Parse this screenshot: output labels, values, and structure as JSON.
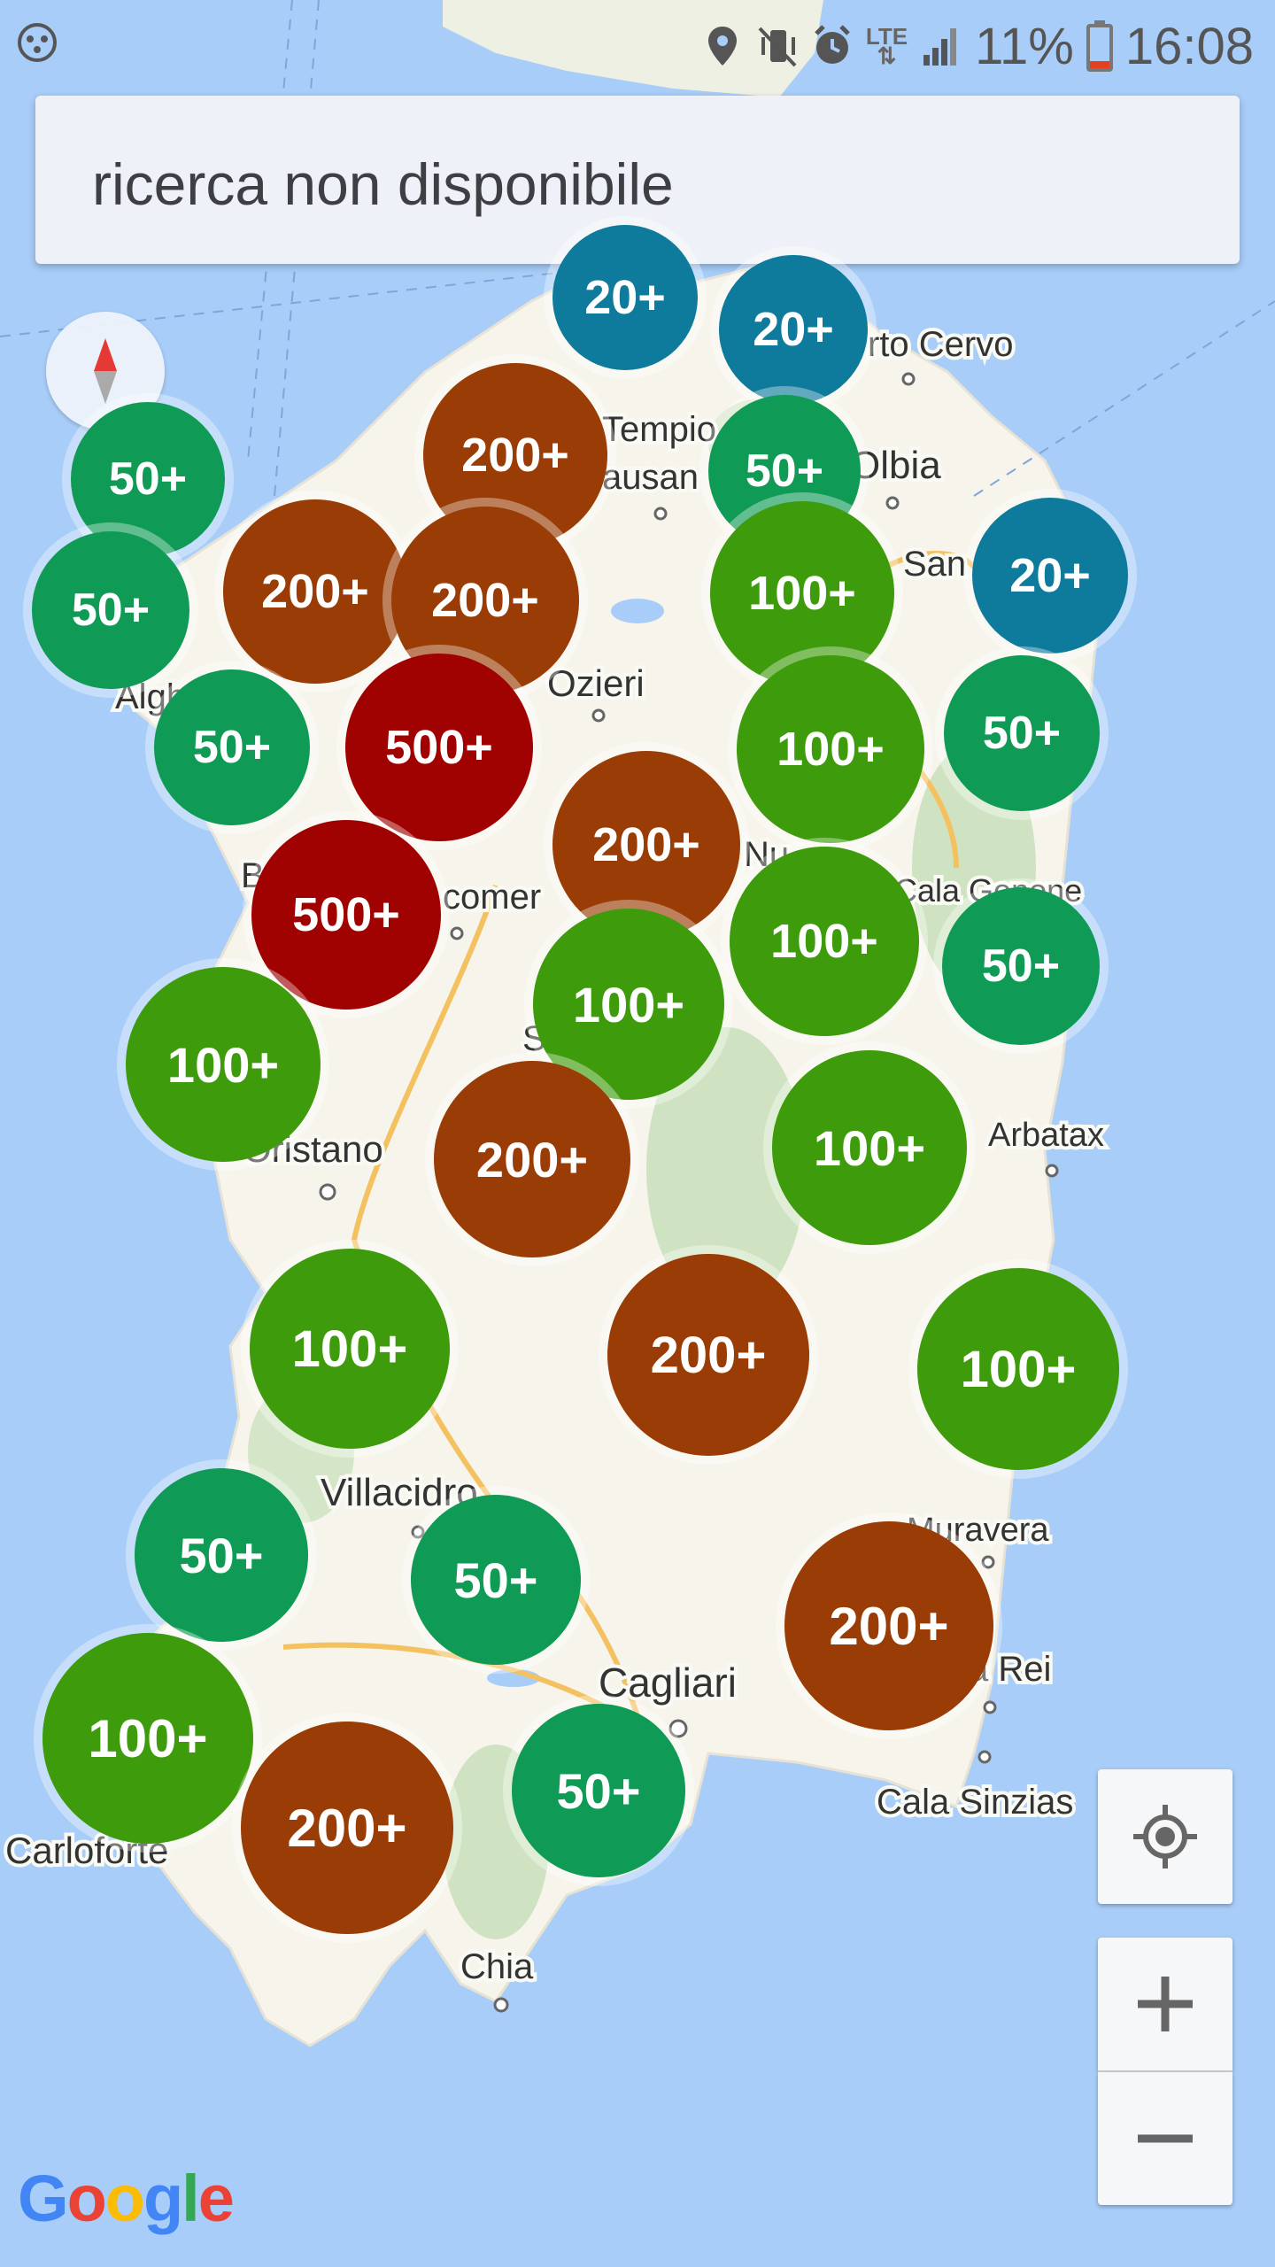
{
  "status_bar": {
    "battery": "11%",
    "time": "16:08",
    "network": "LTE",
    "icons": [
      "location-icon",
      "vibrate-mute-icon",
      "alarm-icon",
      "lte-icon",
      "signal-icon",
      "battery-icon"
    ]
  },
  "search": {
    "text": "ricerca non disponibile"
  },
  "map": {
    "provider": "Google",
    "places": [
      "rto Cervo",
      "Tempio",
      "ausan",
      "Olbia",
      "San T",
      "Ozieri",
      "Algh",
      "Nu",
      "Cala Gonone",
      "B",
      "comer",
      "S",
      "Oristano",
      "Arbatax",
      "Villacidro",
      "Muravera",
      "Cagliari",
      "a Rei",
      "Cala Sinzias",
      "Carloforte",
      "Chia"
    ]
  },
  "clusters": [
    {
      "label": "20+",
      "category": "20"
    },
    {
      "label": "20+",
      "category": "20"
    },
    {
      "label": "200+",
      "category": "200"
    },
    {
      "label": "50+",
      "category": "50"
    },
    {
      "label": "50+",
      "category": "50"
    },
    {
      "label": "50+",
      "category": "50"
    },
    {
      "label": "200+",
      "category": "200"
    },
    {
      "label": "200+",
      "category": "200"
    },
    {
      "label": "100+",
      "category": "100"
    },
    {
      "label": "20+",
      "category": "20"
    },
    {
      "label": "50+",
      "category": "50"
    },
    {
      "label": "500+",
      "category": "500"
    },
    {
      "label": "100+",
      "category": "100"
    },
    {
      "label": "50+",
      "category": "50"
    },
    {
      "label": "200+",
      "category": "200"
    },
    {
      "label": "500+",
      "category": "500"
    },
    {
      "label": "100+",
      "category": "100"
    },
    {
      "label": "100+",
      "category": "100"
    },
    {
      "label": "50+",
      "category": "50"
    },
    {
      "label": "100+",
      "category": "100"
    },
    {
      "label": "200+",
      "category": "200"
    },
    {
      "label": "100+",
      "category": "100"
    },
    {
      "label": "100+",
      "category": "100"
    },
    {
      "label": "200+",
      "category": "200"
    },
    {
      "label": "100+",
      "category": "100"
    },
    {
      "label": "50+",
      "category": "50"
    },
    {
      "label": "50+",
      "category": "50"
    },
    {
      "label": "200+",
      "category": "200"
    },
    {
      "label": "100+",
      "category": "100"
    },
    {
      "label": "200+",
      "category": "200"
    },
    {
      "label": "50+",
      "category": "50"
    }
  ],
  "colors": {
    "cluster_20": "#0e7a9c",
    "cluster_50": "#0f9a55",
    "cluster_100": "#3d9b0c",
    "cluster_200": "#9a3c05",
    "cluster_500": "#a00202",
    "sea": "#a8cdf8",
    "land": "#f7f4ec"
  },
  "controls": {
    "my_location_icon": "my-location-icon",
    "zoom_in_icon": "plus-icon",
    "zoom_out_icon": "minus-icon",
    "compass_icon": "compass-icon"
  }
}
